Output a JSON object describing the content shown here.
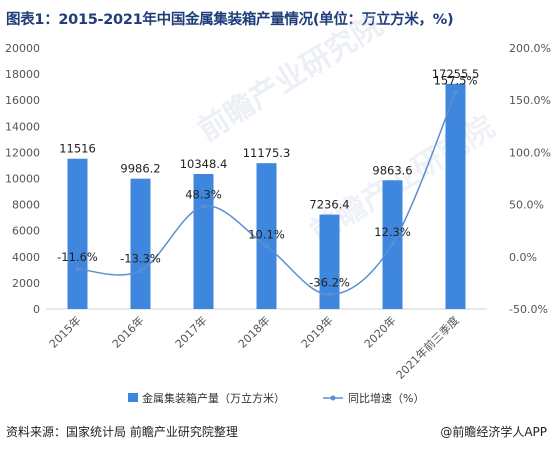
{
  "title": "图表1：2015-2021年中国金属集装箱产量情况(单位：万立方米，%)",
  "source": "资料来源：国家统计局 前瞻产业研究院整理",
  "credit": "@前瞻经济学人APP",
  "watermark": "前瞻产业研究院",
  "chart_data": {
    "type": "bar",
    "categories": [
      "2015年",
      "2016年",
      "2017年",
      "2018年",
      "2019年",
      "2020年",
      "2021年前三季度"
    ],
    "series": [
      {
        "name": "金属集装箱产量（万立方米）",
        "type": "bar",
        "values": [
          11516,
          9986.2,
          10348.4,
          11175.3,
          7236.4,
          9863.6,
          17255.5
        ],
        "labels": [
          "11516",
          "9986.2",
          "10348.4",
          "11175.3",
          "7236.4",
          "9863.6",
          "17255.5"
        ],
        "color": "#3f86de"
      },
      {
        "name": "同比增速（%）",
        "type": "line",
        "axis": "right",
        "values": [
          -11.6,
          -13.3,
          48.3,
          10.1,
          -36.2,
          12.3,
          157.5
        ],
        "labels": [
          "-11.6%",
          "-13.3%",
          "48.3%",
          "10.1%",
          "-36.2%",
          "12.3%",
          "157.5%"
        ],
        "color": "#5b8fd0"
      }
    ],
    "y_left": {
      "min": 0,
      "max": 20000,
      "ticks": [
        0,
        2000,
        4000,
        6000,
        8000,
        10000,
        12000,
        14000,
        16000,
        18000,
        20000
      ]
    },
    "y_right": {
      "min": -50,
      "max": 200,
      "ticks": [
        "-50.0%",
        "0.0%",
        "50.0%",
        "100.0%",
        "150.0%",
        "200.0%"
      ]
    },
    "legend_position": "bottom",
    "grid": false
  }
}
